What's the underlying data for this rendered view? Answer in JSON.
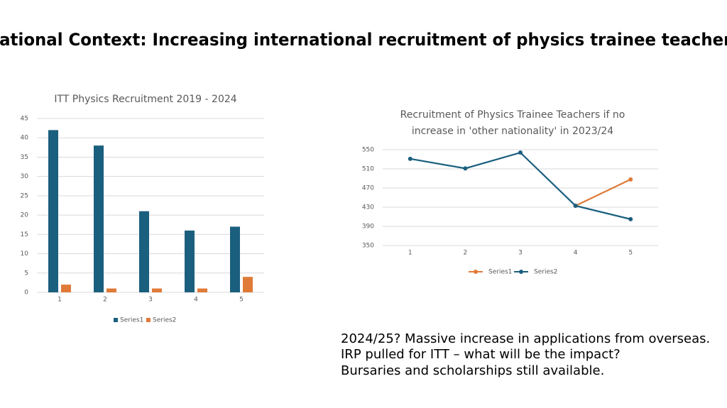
{
  "slide": {
    "title": "National Context: Increasing international recruitment of physics trainee teachers",
    "lines": [
      "2024/25? Massive increase in applications from overseas.",
      "IRP pulled for ITT – what will be the impact?",
      "Bursaries and scholarships still available."
    ]
  },
  "chart_data": [
    {
      "type": "bar",
      "title": "ITT Physics Recruitment 2019 - 2024",
      "categories": [
        "1",
        "2",
        "3",
        "4",
        "5"
      ],
      "series": [
        {
          "name": "Series1",
          "color": "#1b5f7e",
          "values": [
            42,
            38,
            21,
            16,
            17
          ]
        },
        {
          "name": "Series2",
          "color": "#e07a38",
          "values": [
            2,
            1,
            1,
            1,
            4
          ]
        }
      ],
      "ylim": [
        0,
        45
      ],
      "yticks": [
        0,
        5,
        10,
        15,
        20,
        25,
        30,
        35,
        40,
        45
      ],
      "grid": true,
      "legend": "bottom"
    },
    {
      "type": "line",
      "title": [
        "Recruitment of Physics Trainee Teachers if no",
        "increase in 'other nationality' in 2023/24"
      ],
      "categories": [
        "1",
        "2",
        "3",
        "4",
        "5"
      ],
      "series": [
        {
          "name": "Series1",
          "color": "#e07a38",
          "values": [
            null,
            null,
            null,
            433,
            488
          ]
        },
        {
          "name": "Series2",
          "color": "#1b5f7e",
          "values": [
            531,
            511,
            544,
            433,
            405
          ]
        }
      ],
      "ylim": [
        350,
        550
      ],
      "yticks": [
        350,
        390,
        430,
        470,
        510,
        550
      ],
      "grid": true,
      "legend": "bottom"
    }
  ]
}
